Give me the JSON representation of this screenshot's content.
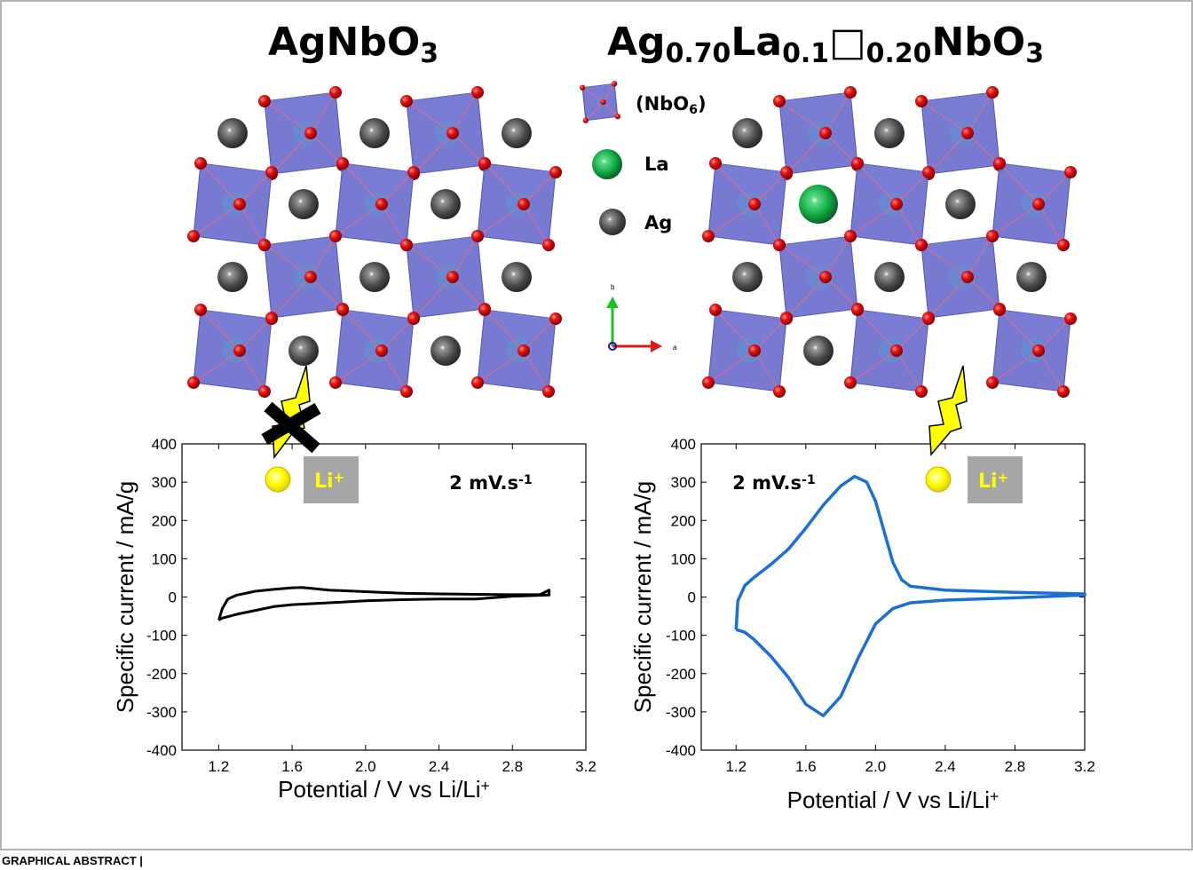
{
  "structures": [
    {
      "title": [
        {
          "text": "AgNbO"
        },
        {
          "text": "3",
          "shift": "sub"
        }
      ]
    },
    {
      "title": [
        {
          "text": "Ag"
        },
        {
          "text": "0.70",
          "shift": "sub"
        },
        {
          "text": "La"
        },
        {
          "text": "0.1",
          "shift": "sub"
        },
        {
          "text": "□"
        },
        {
          "text": "0.20",
          "shift": "sub"
        },
        {
          "text": "NbO"
        },
        {
          "text": "3",
          "shift": "sub"
        }
      ]
    }
  ],
  "legend": {
    "octahedron": [
      {
        "text": "(NbO"
      },
      {
        "text": "6",
        "shift": "sub"
      },
      {
        "text": ")"
      }
    ],
    "la": "La",
    "ag": "Ag",
    "axis_b": "b",
    "axis_a": "a"
  },
  "caption": "GRAPHICAL ABSTRACT |",
  "chart_data": [
    {
      "type": "line",
      "x_label": [
        {
          "text": "Potential / V vs Li/Li"
        },
        {
          "text": "+",
          "shift": "sup"
        }
      ],
      "y_label": "Specific current / mA/g",
      "annotation": [
        {
          "text": "2 mV.s"
        },
        {
          "text": "-1",
          "shift": "sup"
        }
      ],
      "ion_label": [
        {
          "text": "Li"
        },
        {
          "text": "+",
          "shift": "sup"
        }
      ],
      "ion_blocked": true,
      "xlim": [
        1.0,
        3.2
      ],
      "ylim": [
        -400,
        400
      ],
      "xticks": [
        1.2,
        1.6,
        {
          "value": 2,
          "label": "2.0"
        },
        2.4,
        2.8,
        3.2
      ],
      "yticks": [
        -400,
        -300,
        -200,
        -100,
        0,
        100,
        200,
        300,
        400
      ],
      "series": [
        {
          "color": "#000000",
          "x": [
            1.2,
            1.22,
            1.25,
            1.3,
            1.4,
            1.5,
            1.6,
            1.65,
            1.7,
            1.8,
            2.0,
            2.2,
            2.4,
            2.6,
            2.8,
            2.95,
            3.0,
            3.0,
            2.8,
            2.6,
            2.4,
            2.2,
            2.0,
            1.8,
            1.6,
            1.5,
            1.4,
            1.3,
            1.22,
            1.2
          ],
          "values": [
            -60,
            -30,
            -5,
            5,
            15,
            20,
            24,
            25,
            23,
            18,
            14,
            10,
            8,
            7,
            6,
            6,
            18,
            5,
            2,
            -5,
            -5,
            -7,
            -10,
            -15,
            -20,
            -25,
            -35,
            -45,
            -55,
            -60
          ]
        }
      ]
    },
    {
      "type": "line",
      "x_label": [
        {
          "text": "Potential / V vs Li/Li"
        },
        {
          "text": "+",
          "shift": "sup"
        }
      ],
      "y_label": "Specific current / mA/g",
      "annotation": [
        {
          "text": "2 mV.s"
        },
        {
          "text": "-1",
          "shift": "sup"
        }
      ],
      "ion_label": [
        {
          "text": "Li"
        },
        {
          "text": "+",
          "shift": "sup"
        }
      ],
      "ion_blocked": false,
      "xlim": [
        1.0,
        3.2
      ],
      "ylim": [
        -400,
        400
      ],
      "xticks": [
        1.2,
        1.6,
        {
          "value": 2,
          "label": "2.0"
        },
        2.4,
        2.8,
        3.2
      ],
      "yticks": [
        -400,
        -300,
        -200,
        -100,
        0,
        100,
        200,
        300,
        400
      ],
      "series": [
        {
          "color": "#1a6fd6",
          "x": [
            1.2,
            1.21,
            1.25,
            1.3,
            1.4,
            1.5,
            1.6,
            1.7,
            1.8,
            1.88,
            1.95,
            2.0,
            2.05,
            2.1,
            2.15,
            2.2,
            2.4,
            2.8,
            3.2,
            3.2,
            2.8,
            2.4,
            2.2,
            2.1,
            2.0,
            1.9,
            1.8,
            1.7,
            1.6,
            1.5,
            1.4,
            1.3,
            1.25,
            1.2
          ],
          "values": [
            -85,
            -10,
            30,
            50,
            85,
            125,
            180,
            240,
            290,
            315,
            300,
            250,
            170,
            90,
            45,
            28,
            18,
            12,
            8,
            5,
            -2,
            -8,
            -15,
            -30,
            -70,
            -160,
            -260,
            -310,
            -280,
            -210,
            -155,
            -110,
            -92,
            -85
          ]
        }
      ]
    }
  ]
}
